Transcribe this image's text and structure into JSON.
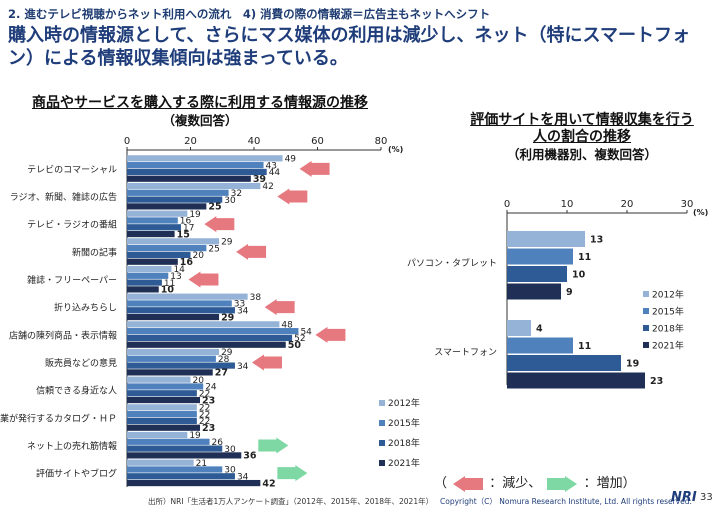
{
  "header": {
    "section": "2. 進むテレビ視聴からネット利用への流れ　4) 消費の際の情報源＝広告主もネットへシフト",
    "headline": "購入時の情報源として、さらにマス媒体の利用は減少し、ネット（特にスマートフォン）による情報収集傾向は強まっている。"
  },
  "chart_data": [
    {
      "type": "bar",
      "orientation": "horizontal",
      "title": "商品やサービスを購入する際に利用する情報源の推移",
      "subtitle": "（複数回答）",
      "unit": "(%)",
      "xlim": [
        0,
        80
      ],
      "ticks": [
        0,
        20,
        40,
        60,
        80
      ],
      "categories": [
        "テレビのコマーシャル",
        "ラジオ、新聞、雑誌の広告",
        "テレビ・ラジオの番組",
        "新聞の記事",
        "雑誌・フリーペーパー",
        "折り込みちらし",
        "店舗の陳列商品・表示情報",
        "販売員などの意見",
        "信頼できる身近な人",
        "企業が発行するカタログ・ＨＰ",
        "ネット上の売れ筋情報",
        "評価サイトやブログ"
      ],
      "series": [
        {
          "name": "2012年",
          "color": "#95b3d7",
          "values": [
            49,
            42,
            19,
            29,
            14,
            38,
            48,
            29,
            20,
            22,
            19,
            21
          ]
        },
        {
          "name": "2015年",
          "color": "#4f81bd",
          "values": [
            43,
            32,
            16,
            25,
            13,
            33,
            54,
            28,
            24,
            22,
            26,
            30
          ]
        },
        {
          "name": "2018年",
          "color": "#2e5b95",
          "values": [
            44,
            30,
            17,
            20,
            11,
            34,
            52,
            34,
            22,
            22,
            30,
            34
          ]
        },
        {
          "name": "2021年",
          "color": "#1f2f55",
          "values": [
            39,
            25,
            15,
            16,
            10,
            29,
            50,
            27,
            23,
            23,
            36,
            42
          ]
        }
      ],
      "trend": [
        "down",
        "down",
        "down",
        "down",
        "down",
        "down",
        "down",
        "down",
        "",
        "",
        "up",
        "up"
      ]
    },
    {
      "type": "bar",
      "orientation": "horizontal",
      "title": "評価サイトを用いて情報収集を行う人の割合の推移",
      "subtitle": "（利用機器別、複数回答）",
      "unit": "(%)",
      "xlim": [
        0,
        30
      ],
      "ticks": [
        0,
        10,
        20,
        30
      ],
      "categories": [
        "パソコン・タブレット",
        "スマートフォン"
      ],
      "series": [
        {
          "name": "2012年",
          "color": "#95b3d7",
          "values": [
            13,
            4
          ]
        },
        {
          "name": "2015年",
          "color": "#4f81bd",
          "values": [
            11,
            11
          ]
        },
        {
          "name": "2018年",
          "color": "#2e5b95",
          "values": [
            10,
            19
          ]
        },
        {
          "name": "2021年",
          "color": "#1f2f55",
          "values": [
            9,
            23
          ]
        }
      ]
    }
  ],
  "arrow_legend": {
    "open": "（",
    "down": "：減少、",
    "up": "：増加）"
  },
  "arrow_colors": {
    "down": "#e6787f",
    "up": "#7dd8a3"
  },
  "footer": {
    "source": "出所）NRI「生活者1万人アンケート調査」（2012年、2015年、2018年、2021年）",
    "copyright": "Copyright（C） Nomura Research Institute, Ltd. All rights reserved.",
    "logo": "NRI",
    "page": "33"
  }
}
